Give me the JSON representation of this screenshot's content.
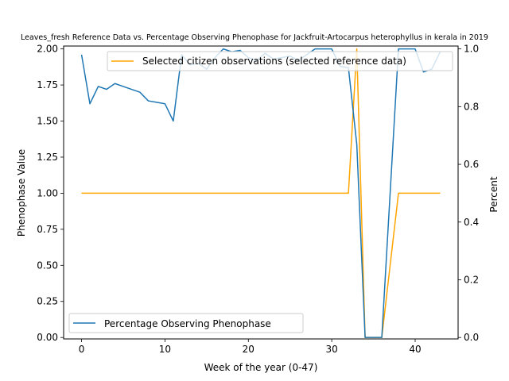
{
  "chart_data": {
    "type": "line",
    "title": "Leaves_fresh Reference Data vs. Percentage Observing Phenophase for Jackfruit-Artocarpus heterophyllus in kerala in 2019",
    "xlabel": "Week of the year (0-47)",
    "ylabel_left": "Phenophase Value",
    "ylabel_right": "Percent",
    "xlim": [
      -2.15,
      45.15
    ],
    "ylim_left": [
      -0.01,
      2.02
    ],
    "ylim_right": [
      -0.005,
      1.01
    ],
    "x_ticks": [
      0,
      10,
      20,
      30,
      40
    ],
    "y_left_ticks": [
      "0.00",
      "0.25",
      "0.50",
      "0.75",
      "1.00",
      "1.25",
      "1.50",
      "1.75",
      "2.00"
    ],
    "y_right_ticks": [
      "0.0",
      "0.2",
      "0.4",
      "0.6",
      "0.8",
      "1.0"
    ],
    "legend_upper": {
      "position": "top-right",
      "label": "Selected citizen observations (selected reference data)"
    },
    "legend_lower": {
      "position": "bottom-left",
      "label": "Percentage Observing Phenophase"
    },
    "series": [
      {
        "name": "Selected citizen observations (selected reference data)",
        "axis": "left",
        "color": "#FFA500",
        "x": [
          0,
          32,
          33,
          34,
          36,
          38,
          43
        ],
        "y": [
          1.0,
          1.0,
          2.0,
          0.0,
          0.0,
          1.0,
          1.0
        ]
      },
      {
        "name": "Percentage Observing Phenophase",
        "axis": "right",
        "color": "#1f77b4",
        "x": [
          0,
          1,
          2,
          3,
          4,
          5,
          6,
          7,
          8,
          9,
          10,
          11,
          12,
          13,
          14,
          15,
          16,
          17,
          18,
          19,
          20,
          21,
          22,
          23,
          24,
          25,
          26,
          27,
          28,
          29,
          30,
          31,
          32,
          33,
          34,
          35,
          36,
          37,
          38,
          39,
          40,
          41,
          42,
          43
        ],
        "y": [
          0.98,
          0.81,
          0.87,
          0.86,
          0.88,
          0.87,
          0.86,
          0.85,
          0.82,
          0.815,
          0.81,
          0.75,
          0.98,
          0.945,
          0.95,
          0.93,
          0.97,
          1.0,
          0.99,
          0.995,
          0.97,
          0.96,
          0.985,
          0.965,
          0.97,
          0.975,
          0.96,
          0.98,
          1.0,
          1.0,
          1.0,
          0.94,
          0.935,
          0.67,
          0.0,
          0.0,
          0.0,
          0.5,
          1.0,
          1.0,
          1.0,
          0.92,
          0.93,
          0.99
        ]
      }
    ]
  }
}
